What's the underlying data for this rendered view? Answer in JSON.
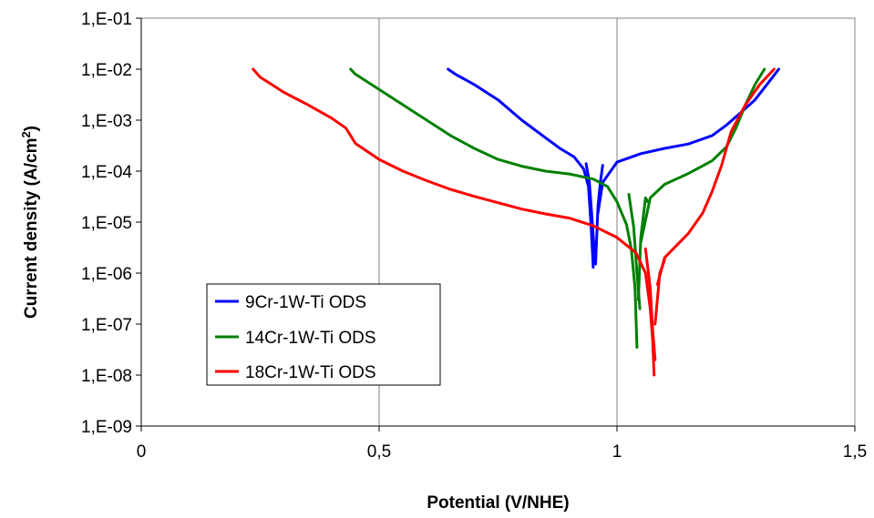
{
  "chart_data": {
    "type": "line",
    "title": "",
    "xlabel": "Potential (V/NHE)",
    "ylabel": {
      "main": "Current density (A/cm",
      "sup": "2",
      "close": ")"
    },
    "x_scale": "linear",
    "y_scale": "log",
    "xlim": [
      0,
      1.5
    ],
    "ylim": [
      1e-09,
      0.1
    ],
    "x_ticks": [
      0,
      0.5,
      1,
      1.5
    ],
    "x_tick_labels": [
      "0",
      "0,5",
      "1",
      "1,5"
    ],
    "y_ticks": [
      1e-09,
      1e-08,
      1e-07,
      1e-06,
      1e-05,
      0.0001,
      0.001,
      0.01,
      0.1
    ],
    "y_tick_labels": [
      "1,E-09",
      "1,E-08",
      "1,E-07",
      "1,E-06",
      "1,E-05",
      "1,E-04",
      "1,E-03",
      "1,E-02",
      "1,E-01"
    ],
    "grid": "vertical major gridlines",
    "legend_position": "lower-left inside plot",
    "series": [
      {
        "name": "9Cr-1W-Ti ODS",
        "color": "#0000ff",
        "segments": [
          [
            [
              0.645,
              0.01
            ],
            [
              0.66,
              0.008
            ],
            [
              0.7,
              0.005
            ],
            [
              0.75,
              0.0025
            ],
            [
              0.8,
              0.001
            ],
            [
              0.85,
              0.00045
            ],
            [
              0.88,
              0.00028
            ],
            [
              0.91,
              0.00019
            ],
            [
              0.93,
              0.00011
            ],
            [
              0.94,
              5e-05
            ],
            [
              0.945,
              1e-05
            ],
            [
              0.948,
              3e-06
            ],
            [
              0.95,
              1.3e-06
            ]
          ],
          [
            [
              0.935,
              0.00014
            ],
            [
              0.942,
              6e-05
            ],
            [
              0.948,
              1e-05
            ],
            [
              0.952,
              3e-06
            ],
            [
              0.955,
              1.6e-06
            ]
          ],
          [
            [
              0.955,
              1.5e-06
            ],
            [
              0.96,
              2e-05
            ],
            [
              0.965,
              6e-05
            ],
            [
              0.97,
              0.00013
            ]
          ],
          [
            [
              0.96,
              1.5e-05
            ],
            [
              0.97,
              6e-05
            ],
            [
              1.0,
              0.00015
            ],
            [
              1.05,
              0.00022
            ],
            [
              1.1,
              0.00028
            ],
            [
              1.15,
              0.00034
            ],
            [
              1.2,
              0.0005
            ],
            [
              1.23,
              0.0008
            ],
            [
              1.26,
              0.0014
            ],
            [
              1.29,
              0.0025
            ],
            [
              1.315,
              0.005
            ],
            [
              1.34,
              0.01
            ]
          ]
        ]
      },
      {
        "name": "14Cr-1W-Ti ODS",
        "color": "#008000",
        "segments": [
          [
            [
              0.44,
              0.01
            ],
            [
              0.45,
              0.008
            ],
            [
              0.5,
              0.004
            ],
            [
              0.55,
              0.002
            ],
            [
              0.6,
              0.001
            ],
            [
              0.65,
              0.0005
            ],
            [
              0.7,
              0.00028
            ],
            [
              0.75,
              0.00017
            ],
            [
              0.8,
              0.000125
            ],
            [
              0.85,
              0.0001
            ],
            [
              0.9,
              8.8e-05
            ],
            [
              0.95,
              7e-05
            ],
            [
              0.98,
              5e-05
            ],
            [
              1.0,
              2.5e-05
            ],
            [
              1.02,
              9e-06
            ],
            [
              1.03,
              3e-06
            ],
            [
              1.038,
              5e-07
            ],
            [
              1.042,
              3.5e-08
            ]
          ],
          [
            [
              1.025,
              3.5e-05
            ],
            [
              1.035,
              8e-06
            ],
            [
              1.042,
              1e-06
            ],
            [
              1.048,
              2e-07
            ]
          ],
          [
            [
              1.045,
              3e-07
            ],
            [
              1.05,
              5e-06
            ],
            [
              1.06,
              3e-05
            ],
            [
              1.065,
              2.5e-05
            ]
          ],
          [
            [
              1.05,
              4e-06
            ],
            [
              1.07,
              3e-05
            ],
            [
              1.1,
              5.5e-05
            ],
            [
              1.15,
              9e-05
            ],
            [
              1.2,
              0.00016
            ],
            [
              1.23,
              0.0003
            ],
            [
              1.25,
              0.0007
            ],
            [
              1.27,
              0.002
            ],
            [
              1.29,
              0.005
            ],
            [
              1.31,
              0.01
            ]
          ]
        ]
      },
      {
        "name": "18Cr-1W-Ti ODS",
        "color": "#ff0000",
        "segments": [
          [
            [
              0.235,
              0.01
            ],
            [
              0.25,
              0.007
            ],
            [
              0.3,
              0.0035
            ],
            [
              0.35,
              0.002
            ],
            [
              0.4,
              0.0011
            ],
            [
              0.43,
              0.0007
            ],
            [
              0.44,
              0.0005
            ],
            [
              0.45,
              0.00035
            ],
            [
              0.5,
              0.00017
            ],
            [
              0.55,
              0.0001
            ],
            [
              0.6,
              6.5e-05
            ],
            [
              0.65,
              4.4e-05
            ],
            [
              0.7,
              3.2e-05
            ],
            [
              0.75,
              2.4e-05
            ],
            [
              0.8,
              1.8e-05
            ],
            [
              0.85,
              1.45e-05
            ],
            [
              0.9,
              1.2e-05
            ],
            [
              0.95,
              8.5e-06
            ],
            [
              1.0,
              5e-06
            ],
            [
              1.04,
              2.5e-06
            ],
            [
              1.06,
              1e-06
            ],
            [
              1.07,
              2e-07
            ],
            [
              1.075,
              5e-08
            ],
            [
              1.078,
              1e-08
            ]
          ],
          [
            [
              1.06,
              3e-06
            ],
            [
              1.07,
              5e-07
            ],
            [
              1.075,
              8e-08
            ],
            [
              1.08,
              2e-08
            ]
          ],
          [
            [
              1.08,
              1e-07
            ],
            [
              1.09,
              1e-06
            ],
            [
              1.1,
              1.8e-06
            ]
          ],
          [
            [
              1.085,
              6e-07
            ],
            [
              1.1,
              2e-06
            ],
            [
              1.15,
              6e-06
            ],
            [
              1.18,
              1.5e-05
            ],
            [
              1.2,
              4e-05
            ],
            [
              1.22,
              0.00013
            ],
            [
              1.24,
              0.0006
            ],
            [
              1.27,
              0.002
            ],
            [
              1.3,
              0.005
            ],
            [
              1.33,
              0.01
            ]
          ]
        ]
      }
    ]
  }
}
